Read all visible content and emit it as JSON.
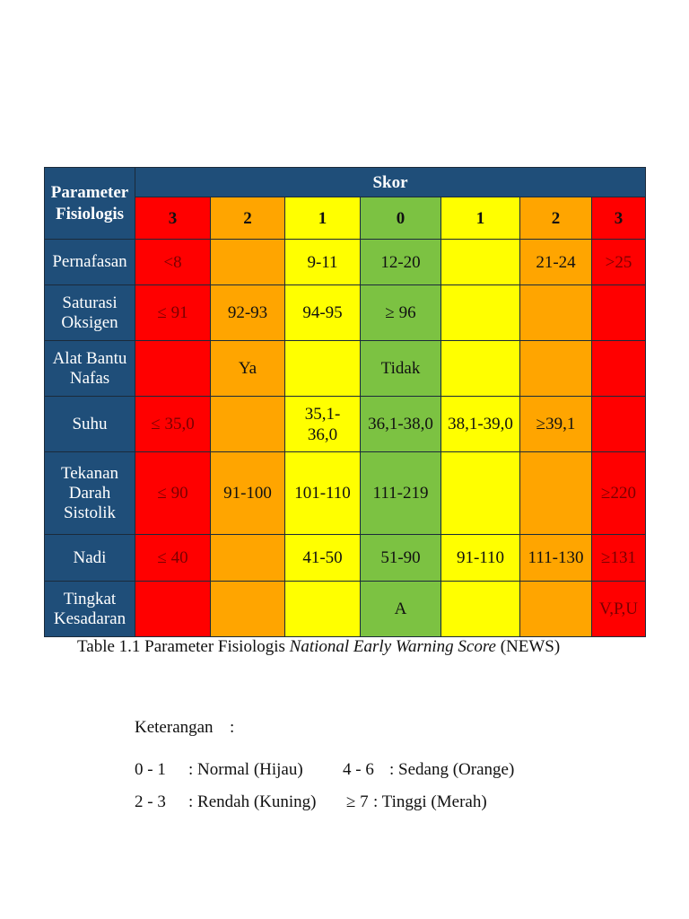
{
  "table": {
    "param_header": [
      "Parameter",
      "Fisiologis"
    ],
    "skor_header": "Skor",
    "score_columns": [
      {
        "label": "3",
        "color": "#ff0000"
      },
      {
        "label": "2",
        "color": "#ffa500"
      },
      {
        "label": "1",
        "color": "#ffff00"
      },
      {
        "label": "0",
        "color": "#7cc242"
      },
      {
        "label": "1",
        "color": "#ffff00"
      },
      {
        "label": "2",
        "color": "#ffa500"
      },
      {
        "label": "3",
        "color": "#ff0000"
      }
    ],
    "rows": [
      {
        "label": [
          "Pernafasan"
        ],
        "cells": [
          "<8",
          "",
          "9-11",
          "12-20",
          "",
          "21-24",
          ">25"
        ]
      },
      {
        "label": [
          "Saturasi",
          "Oksigen"
        ],
        "cells": [
          "≤ 91",
          "92-93",
          "94-95",
          "≥ 96",
          "",
          "",
          ""
        ]
      },
      {
        "label": [
          "Alat Bantu",
          "Nafas"
        ],
        "cells": [
          "",
          "Ya",
          "",
          "Tidak",
          "",
          "",
          ""
        ]
      },
      {
        "label": [
          "Suhu"
        ],
        "cells": [
          "≤ 35,0",
          "",
          "35,1-\n36,0",
          "36,1-38,0",
          "38,1-39,0",
          "≥39,1",
          ""
        ]
      },
      {
        "label": [
          "Tekanan",
          "Darah",
          "Sistolik"
        ],
        "cells": [
          "≤ 90",
          "91-100",
          "101-110",
          "111-219",
          "",
          "",
          "≥220"
        ]
      },
      {
        "label": [
          "Nadi"
        ],
        "cells": [
          "≤ 40",
          "",
          "41-50",
          "51-90",
          "91-110",
          "111-130",
          "≥131"
        ]
      },
      {
        "label": [
          "Tingkat",
          "Kesadaran"
        ],
        "cells": [
          "",
          "",
          "",
          "A",
          "",
          "",
          "V,P,U"
        ]
      }
    ]
  },
  "caption": {
    "prefix": "Table 1.1 Parameter Fisiologis ",
    "italic": "National Early Warning Score",
    "suffix": " (NEWS)"
  },
  "legend": {
    "title": "Keterangan",
    "colon": ":",
    "items": [
      {
        "range": "0 - 1",
        "desc": ": Normal (Hijau)"
      },
      {
        "range": "4 - 6",
        "desc": ": Sedang (Orange)"
      },
      {
        "range": "2 - 3",
        "desc": ": Rendah (Kuning)"
      },
      {
        "range": "≥ 7",
        "desc": ": Tinggi (Merah)"
      }
    ]
  }
}
